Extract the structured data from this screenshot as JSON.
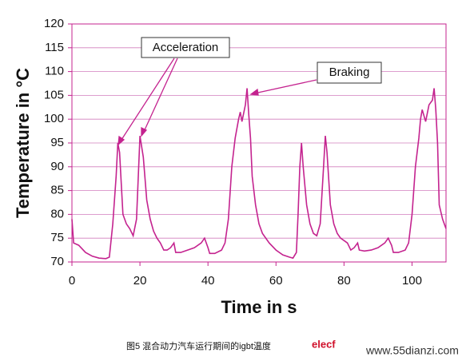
{
  "chart_data": {
    "type": "line",
    "ylabel": "Temperature in °C",
    "xlabel": "Time in s",
    "x": [
      0,
      0.5,
      2,
      4,
      6,
      8,
      10,
      11,
      12,
      13,
      13.5,
      14,
      15,
      16,
      17,
      18,
      19,
      20,
      21,
      22,
      23,
      24,
      25,
      26,
      27,
      28,
      29,
      30,
      30.5,
      32,
      34,
      36,
      38,
      39,
      40,
      40.5,
      42,
      44,
      45,
      46,
      47,
      48,
      49,
      49.5,
      50,
      51,
      51.5,
      52,
      52.5,
      53,
      54,
      55,
      56,
      58,
      60,
      62,
      64,
      65,
      66,
      66.5,
      67,
      67.5,
      68,
      69,
      70,
      71,
      72,
      73,
      74,
      74.5,
      75,
      76,
      77,
      78,
      79,
      80,
      81,
      82,
      83,
      84,
      84.5,
      86,
      88,
      90,
      92,
      93,
      94,
      94.5,
      96,
      98,
      99,
      100,
      101,
      102,
      102.5,
      103,
      104,
      105,
      106,
      106.5,
      107,
      107.5,
      108,
      109,
      110
    ],
    "values": [
      79,
      74,
      73.5,
      72,
      71.2,
      70.8,
      70.7,
      71,
      78,
      88,
      95,
      93,
      80,
      78,
      77,
      75.5,
      79,
      96.5,
      92,
      83,
      79,
      76.5,
      75,
      74,
      72.5,
      72.5,
      73,
      74,
      72,
      72,
      72.5,
      73,
      74,
      75,
      73,
      71.8,
      71.8,
      72.5,
      74,
      79,
      90,
      96,
      100,
      101.5,
      99.5,
      103,
      106.5,
      101,
      96,
      88,
      82,
      78,
      76,
      74,
      72.5,
      71.5,
      71,
      70.8,
      72,
      80,
      90,
      95,
      90,
      82,
      78,
      76,
      75.5,
      78,
      90,
      96.5,
      93,
      82,
      78,
      76,
      75,
      74.5,
      74,
      72.5,
      73,
      74,
      72.5,
      72.3,
      72.5,
      73,
      74,
      75,
      73.5,
      72,
      72,
      72.5,
      74,
      80,
      90,
      96,
      100,
      102,
      99.5,
      103,
      104,
      106.5,
      102,
      95,
      82,
      79,
      77
    ],
    "color": "#c4238f",
    "xlim": [
      0,
      110
    ],
    "xticks": [
      0,
      20,
      40,
      60,
      80,
      100
    ],
    "ylim": [
      70,
      120
    ],
    "yticks": [
      70,
      75,
      80,
      85,
      90,
      95,
      100,
      105,
      110,
      115,
      120
    ],
    "grid": true,
    "annotations": [
      "Acceleration",
      "Braking"
    ],
    "caption": "图5 混合动力汽车运行期间的igbt温度",
    "watermark": "elecf",
    "website": "www.55dianzi.com"
  }
}
